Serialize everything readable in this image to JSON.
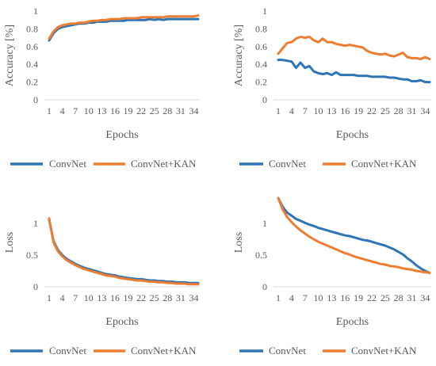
{
  "chart_data": [
    {
      "type": "line",
      "title": "",
      "xlabel": "Epochs",
      "ylabel": "Accuracy [%]",
      "ylim": [
        0,
        1
      ],
      "yticks": [
        "0",
        "0.2",
        "0.4",
        "0.6",
        "0.8",
        "1"
      ],
      "x": [
        1,
        2,
        3,
        4,
        5,
        6,
        7,
        8,
        9,
        10,
        11,
        12,
        13,
        14,
        15,
        16,
        17,
        18,
        19,
        20,
        21,
        22,
        23,
        24,
        25,
        26,
        27,
        28,
        29,
        30,
        31,
        32,
        33,
        34,
        35
      ],
      "xtick_labels": [
        "1",
        "4",
        "7",
        "10",
        "13",
        "16",
        "19",
        "22",
        "25",
        "28",
        "31",
        "34"
      ],
      "grid": false,
      "legend_position": "bottom",
      "series": [
        {
          "name": "ConvNet",
          "color": "#2E75B6",
          "values": [
            0.67,
            0.75,
            0.8,
            0.82,
            0.83,
            0.84,
            0.85,
            0.86,
            0.86,
            0.87,
            0.87,
            0.88,
            0.88,
            0.88,
            0.89,
            0.89,
            0.89,
            0.89,
            0.9,
            0.9,
            0.9,
            0.9,
            0.9,
            0.91,
            0.9,
            0.91,
            0.9,
            0.91,
            0.91,
            0.91,
            0.91,
            0.91,
            0.91,
            0.91,
            0.91
          ]
        },
        {
          "name": "ConvNet+KAN",
          "color": "#ED7D31",
          "values": [
            0.69,
            0.77,
            0.82,
            0.84,
            0.85,
            0.86,
            0.86,
            0.87,
            0.87,
            0.88,
            0.89,
            0.89,
            0.9,
            0.9,
            0.91,
            0.91,
            0.91,
            0.92,
            0.92,
            0.92,
            0.92,
            0.93,
            0.93,
            0.93,
            0.93,
            0.93,
            0.93,
            0.94,
            0.94,
            0.94,
            0.94,
            0.94,
            0.94,
            0.94,
            0.95
          ]
        }
      ]
    },
    {
      "type": "line",
      "title": "",
      "xlabel": "Epochs",
      "ylabel": "Accuracy [%]",
      "ylim": [
        0,
        1
      ],
      "yticks": [
        "0",
        "0.2",
        "0.4",
        "0.6",
        "0.8",
        "1"
      ],
      "x": [
        1,
        2,
        3,
        4,
        5,
        6,
        7,
        8,
        9,
        10,
        11,
        12,
        13,
        14,
        15,
        16,
        17,
        18,
        19,
        20,
        21,
        22,
        23,
        24,
        25,
        26,
        27,
        28,
        29,
        30,
        31,
        32,
        33,
        34,
        35
      ],
      "xtick_labels": [
        "1",
        "4",
        "7",
        "10",
        "13",
        "16",
        "19",
        "22",
        "25",
        "28",
        "31",
        "34"
      ],
      "grid": false,
      "legend_position": "bottom",
      "series": [
        {
          "name": "ConvNet",
          "color": "#2E75B6",
          "values": [
            0.45,
            0.45,
            0.44,
            0.43,
            0.36,
            0.42,
            0.36,
            0.38,
            0.32,
            0.3,
            0.29,
            0.3,
            0.28,
            0.31,
            0.28,
            0.28,
            0.28,
            0.28,
            0.27,
            0.27,
            0.27,
            0.26,
            0.26,
            0.26,
            0.26,
            0.25,
            0.25,
            0.24,
            0.23,
            0.23,
            0.21,
            0.21,
            0.22,
            0.2,
            0.2
          ]
        },
        {
          "name": "ConvNet+KAN",
          "color": "#ED7D31",
          "values": [
            0.52,
            0.58,
            0.64,
            0.65,
            0.69,
            0.71,
            0.7,
            0.71,
            0.67,
            0.65,
            0.69,
            0.65,
            0.65,
            0.63,
            0.62,
            0.61,
            0.62,
            0.61,
            0.6,
            0.59,
            0.55,
            0.53,
            0.52,
            0.51,
            0.52,
            0.5,
            0.49,
            0.51,
            0.53,
            0.48,
            0.47,
            0.47,
            0.46,
            0.48,
            0.46
          ]
        }
      ]
    },
    {
      "type": "line",
      "title": "",
      "xlabel": "Epochs",
      "ylabel": "Loss",
      "ylim": [
        0,
        1.4
      ],
      "yticks": [
        "0",
        "0.5",
        "1"
      ],
      "ytick_values": [
        0,
        0.5,
        1
      ],
      "x": [
        1,
        2,
        3,
        4,
        5,
        6,
        7,
        8,
        9,
        10,
        11,
        12,
        13,
        14,
        15,
        16,
        17,
        18,
        19,
        20,
        21,
        22,
        23,
        24,
        25,
        26,
        27,
        28,
        29,
        30,
        31,
        32,
        33,
        34,
        35
      ],
      "xtick_labels": [
        "1",
        "4",
        "7",
        "10",
        "13",
        "16",
        "19",
        "22",
        "25",
        "28",
        "31",
        "34"
      ],
      "grid": false,
      "legend_position": "bottom",
      "series": [
        {
          "name": "ConvNet",
          "color": "#2E75B6",
          "values": [
            1.06,
            0.72,
            0.58,
            0.5,
            0.44,
            0.4,
            0.36,
            0.33,
            0.3,
            0.28,
            0.26,
            0.24,
            0.22,
            0.2,
            0.19,
            0.18,
            0.16,
            0.15,
            0.14,
            0.13,
            0.12,
            0.12,
            0.11,
            0.1,
            0.1,
            0.09,
            0.09,
            0.08,
            0.08,
            0.07,
            0.07,
            0.07,
            0.06,
            0.06,
            0.06
          ]
        },
        {
          "name": "ConvNet+KAN",
          "color": "#ED7D31",
          "values": [
            1.08,
            0.7,
            0.56,
            0.48,
            0.42,
            0.38,
            0.34,
            0.31,
            0.28,
            0.26,
            0.24,
            0.22,
            0.2,
            0.18,
            0.17,
            0.16,
            0.14,
            0.13,
            0.12,
            0.11,
            0.1,
            0.1,
            0.09,
            0.08,
            0.08,
            0.07,
            0.07,
            0.06,
            0.06,
            0.05,
            0.05,
            0.05,
            0.04,
            0.04,
            0.04
          ]
        }
      ]
    },
    {
      "type": "line",
      "title": "",
      "xlabel": "Epochs",
      "ylabel": "Loss",
      "ylim": [
        0,
        1.4
      ],
      "yticks": [
        "0",
        "0.5",
        "1"
      ],
      "ytick_values": [
        0,
        0.5,
        1
      ],
      "x": [
        1,
        2,
        3,
        4,
        5,
        6,
        7,
        8,
        9,
        10,
        11,
        12,
        13,
        14,
        15,
        16,
        17,
        18,
        19,
        20,
        21,
        22,
        23,
        24,
        25,
        26,
        27,
        28,
        29,
        30,
        31,
        32,
        33,
        34,
        35
      ],
      "xtick_labels": [
        "1",
        "4",
        "7",
        "10",
        "13",
        "16",
        "19",
        "22",
        "25",
        "28",
        "31",
        "34"
      ],
      "grid": false,
      "legend_position": "bottom",
      "series": [
        {
          "name": "ConvNet",
          "color": "#2E75B6",
          "values": [
            1.4,
            1.26,
            1.17,
            1.12,
            1.07,
            1.04,
            1.01,
            0.98,
            0.96,
            0.93,
            0.91,
            0.89,
            0.87,
            0.85,
            0.83,
            0.81,
            0.8,
            0.78,
            0.76,
            0.74,
            0.73,
            0.71,
            0.69,
            0.67,
            0.65,
            0.62,
            0.59,
            0.55,
            0.51,
            0.45,
            0.4,
            0.34,
            0.29,
            0.25,
            0.22
          ]
        },
        {
          "name": "ConvNet+KAN",
          "color": "#ED7D31",
          "values": [
            1.4,
            1.22,
            1.1,
            1.02,
            0.95,
            0.89,
            0.84,
            0.79,
            0.75,
            0.71,
            0.68,
            0.65,
            0.62,
            0.59,
            0.56,
            0.53,
            0.51,
            0.48,
            0.46,
            0.44,
            0.42,
            0.4,
            0.38,
            0.36,
            0.35,
            0.33,
            0.32,
            0.31,
            0.29,
            0.28,
            0.27,
            0.25,
            0.24,
            0.23,
            0.22
          ]
        }
      ]
    }
  ]
}
